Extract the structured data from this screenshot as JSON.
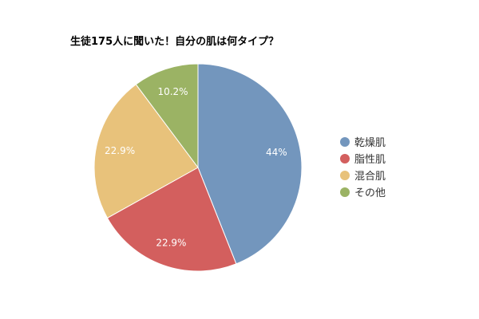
{
  "chart_data": {
    "type": "pie",
    "title": "生徒175人に聞いた！自分の肌は何タイプ？",
    "categories": [
      "乾燥肌",
      "脂性肌",
      "混合肌",
      "その他"
    ],
    "values": [
      44,
      22.9,
      22.9,
      10.2
    ],
    "value_labels": [
      "44%",
      "22.9%",
      "22.9%",
      "10.2%"
    ],
    "colors": [
      "#7396bd",
      "#d35f5e",
      "#e8c27b",
      "#9bb364"
    ],
    "start_angle_deg": 0,
    "direction": "clockwise",
    "legend_placement": "right"
  }
}
